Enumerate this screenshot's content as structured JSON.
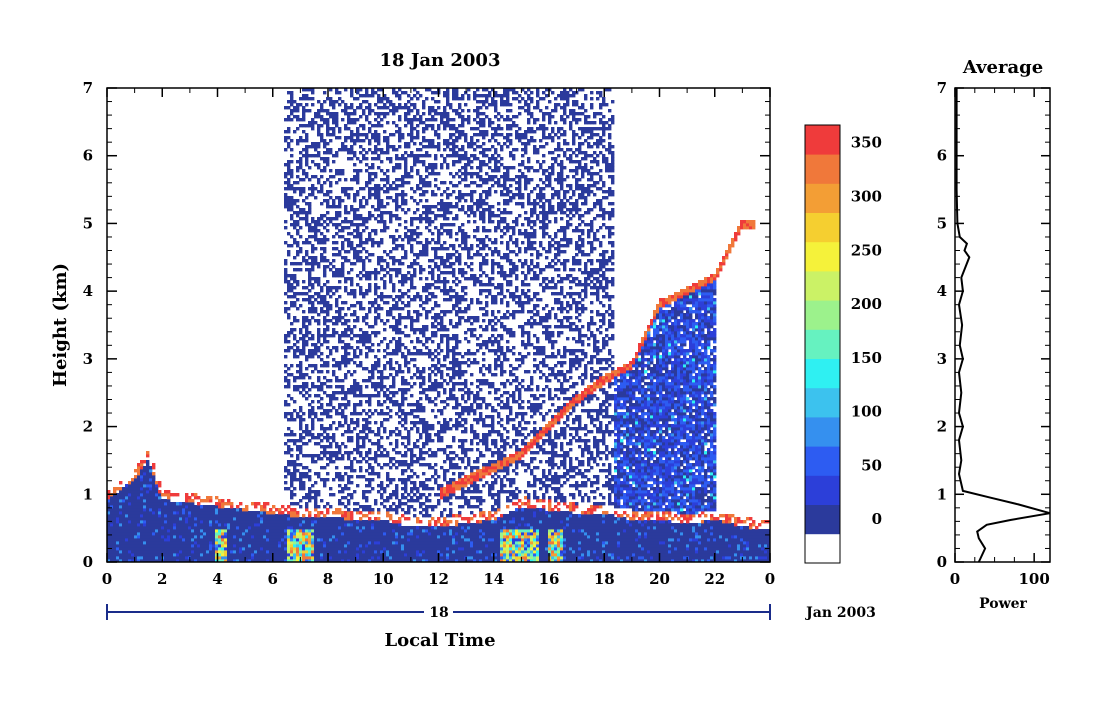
{
  "main_chart": {
    "title": "18 Jan 2003",
    "ylabel": "Height (km)",
    "xlabel": "Local Time",
    "y_ticks": [
      "0",
      "1",
      "2",
      "3",
      "4",
      "5",
      "6",
      "7"
    ],
    "x_ticks": [
      "0",
      "2",
      "4",
      "6",
      "8",
      "10",
      "12",
      "14",
      "16",
      "18",
      "20",
      "22",
      "0"
    ],
    "day_label": "18",
    "date_label": "Jan 2003"
  },
  "colorbar": {
    "labels": [
      "0",
      "50",
      "100",
      "150",
      "200",
      "250",
      "300",
      "350"
    ],
    "colors": [
      "#ffffff",
      "#2b3a9c",
      "#2c3fd9",
      "#2d5cf2",
      "#3590ef",
      "#3cc2ee",
      "#2ff0f2",
      "#66f2c0",
      "#9cf28c",
      "#cbf266",
      "#f5f23a",
      "#f5cf30",
      "#f39e35",
      "#f0783a",
      "#ef3b3b"
    ]
  },
  "side_chart": {
    "title": "Average",
    "xlabel": "Power",
    "x_ticks": [
      "0",
      "100"
    ],
    "y_ticks": [
      "0",
      "1",
      "2",
      "3",
      "4",
      "5",
      "6",
      "7"
    ]
  },
  "chart_data": [
    {
      "type": "heatmap",
      "title": "18 Jan 2003",
      "xlabel": "Local Time",
      "ylabel": "Height (km)",
      "xlim": [
        0,
        24
      ],
      "ylim": [
        0,
        7
      ],
      "x_ticks": [
        "0",
        "2",
        "4",
        "6",
        "8",
        "10",
        "12",
        "14",
        "16",
        "18",
        "20",
        "22",
        "0"
      ],
      "colorbar_range": [
        0,
        380
      ],
      "grid": false,
      "boundary_layer_top_km": {
        "x": [
          0,
          1,
          1.5,
          2,
          3,
          4,
          5,
          6,
          7,
          8,
          9,
          10,
          11,
          12,
          13,
          14,
          15,
          16,
          17,
          18,
          19,
          20,
          21,
          22,
          23,
          24
        ],
        "y": [
          1.0,
          1.3,
          1.6,
          1.0,
          0.95,
          0.9,
          0.85,
          0.8,
          0.75,
          0.75,
          0.7,
          0.7,
          0.6,
          0.6,
          0.65,
          0.7,
          0.9,
          0.85,
          0.8,
          0.8,
          0.7,
          0.7,
          0.65,
          0.7,
          0.6,
          0.55
        ]
      },
      "cloud_layer_top_km": {
        "x": [
          12,
          13,
          14,
          15,
          16,
          17,
          18,
          19,
          20,
          21,
          22,
          23
        ],
        "y": [
          1.0,
          1.2,
          1.4,
          1.6,
          2.0,
          2.4,
          2.7,
          2.9,
          3.8,
          4.0,
          4.2,
          5.0
        ]
      }
    },
    {
      "type": "line",
      "title": "Average",
      "xlabel": "Power",
      "ylabel": "",
      "xlim": [
        0,
        120
      ],
      "ylim": [
        0,
        7
      ],
      "x": [
        30,
        38,
        30,
        28,
        40,
        70,
        120,
        80,
        45,
        10,
        5,
        8,
        5,
        10,
        5,
        8,
        5,
        10,
        6,
        9,
        5,
        10,
        8,
        18,
        12,
        15,
        6,
        3,
        2,
        2,
        2,
        2
      ],
      "y": [
        0.0,
        0.2,
        0.35,
        0.45,
        0.55,
        0.62,
        0.72,
        0.85,
        0.95,
        1.05,
        1.3,
        1.5,
        1.8,
        2.0,
        2.2,
        2.5,
        2.8,
        3.0,
        3.2,
        3.5,
        3.8,
        4.0,
        4.2,
        4.5,
        4.6,
        4.7,
        4.8,
        5.0,
        5.5,
        6.0,
        6.5,
        7.0
      ]
    }
  ]
}
